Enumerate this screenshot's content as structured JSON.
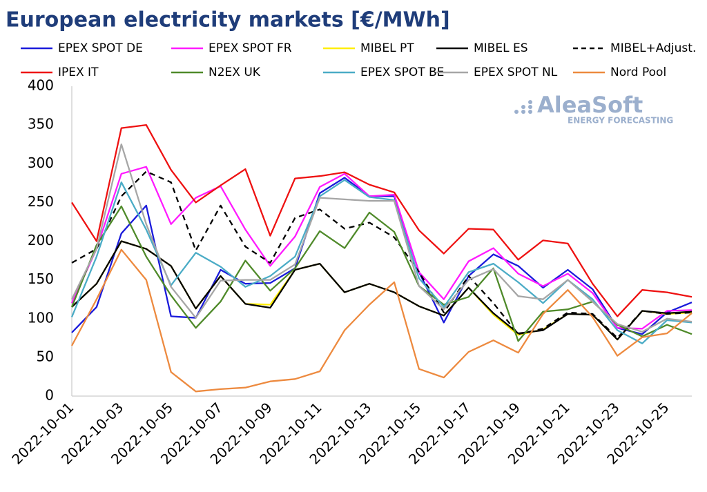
{
  "chart_data": {
    "type": "line",
    "title": "European electricity markets [€/MWh]",
    "watermark": {
      "brand": "AleaSoft",
      "tagline": "ENERGY FORECASTING"
    },
    "categories": [
      "2022-10-01",
      null,
      "2022-10-03",
      null,
      "2022-10-05",
      null,
      "2022-10-07",
      null,
      "2022-10-09",
      null,
      "2022-10-11",
      null,
      "2022-10-13",
      null,
      "2022-10-15",
      null,
      "2022-10-17",
      null,
      "2022-10-19",
      null,
      "2022-10-21",
      null,
      "2022-10-23",
      null,
      "2022-10-25",
      null
    ],
    "ylim": [
      0,
      400
    ],
    "yticks": [
      0,
      50,
      100,
      150,
      200,
      250,
      300,
      350,
      400
    ],
    "grid": false,
    "series": [
      {
        "name": "EPEX SPOT DE",
        "color": "#1a1adb",
        "values": [
          82,
          115,
          210,
          246,
          103,
          101,
          163,
          145,
          146,
          165,
          262,
          282,
          258,
          258,
          160,
          95,
          155,
          183,
          168,
          140,
          163,
          138,
          88,
          80,
          108,
          121
        ]
      },
      {
        "name": "EPEX SPOT FR",
        "color": "#ff1aff",
        "values": [
          120,
          190,
          287,
          296,
          222,
          256,
          271,
          215,
          168,
          206,
          270,
          287,
          258,
          260,
          160,
          125,
          174,
          191,
          158,
          142,
          158,
          133,
          88,
          87,
          110,
          111
        ]
      },
      {
        "name": "MIBEL PT",
        "color": "#ffee00",
        "values": [
          115,
          145,
          200,
          190,
          168,
          113,
          155,
          119,
          118,
          163,
          171,
          134,
          145,
          134,
          116,
          104,
          140,
          105,
          79,
          86,
          106,
          105,
          73,
          110,
          106,
          108
        ]
      },
      {
        "name": "MIBEL ES",
        "color": "#000000",
        "values": [
          115,
          145,
          200,
          190,
          168,
          113,
          155,
          119,
          114,
          163,
          171,
          134,
          145,
          134,
          116,
          104,
          140,
          107,
          81,
          85,
          106,
          105,
          73,
          110,
          107,
          109
        ]
      },
      {
        "name": "MIBEL+Adjust.",
        "color": "#000000",
        "dashed": true,
        "values": [
          172,
          190,
          258,
          290,
          276,
          188,
          246,
          193,
          172,
          230,
          241,
          216,
          224,
          205,
          160,
          108,
          155,
          120,
          80,
          87,
          108,
          106,
          75,
          110,
          106,
          108
        ]
      },
      {
        "name": "IPEX IT",
        "color": "#ee1111",
        "values": [
          250,
          200,
          346,
          350,
          292,
          250,
          272,
          293,
          207,
          281,
          284,
          289,
          273,
          263,
          214,
          184,
          216,
          215,
          176,
          201,
          197,
          145,
          103,
          137,
          134,
          128
        ]
      },
      {
        "name": "N2EX UK",
        "color": "#4f8a2a",
        "values": [
          115,
          195,
          245,
          180,
          130,
          88,
          122,
          175,
          136,
          165,
          213,
          191,
          237,
          212,
          142,
          118,
          128,
          165,
          71,
          109,
          112,
          122,
          92,
          77,
          92,
          80
        ]
      },
      {
        "name": "EPEX SPOT BE",
        "color": "#4bacc6",
        "values": [
          102,
          180,
          276,
          215,
          143,
          185,
          167,
          141,
          155,
          180,
          258,
          279,
          257,
          253,
          152,
          115,
          160,
          171,
          147,
          120,
          150,
          125,
          85,
          68,
          98,
          95
        ]
      },
      {
        "name": "EPEX SPOT NL",
        "color": "#a6a6a6",
        "values": [
          125,
          190,
          325,
          222,
          141,
          101,
          149,
          150,
          150,
          170,
          256,
          254,
          252,
          252,
          142,
          112,
          150,
          164,
          129,
          125,
          150,
          122,
          93,
          83,
          100,
          96
        ]
      },
      {
        "name": "Nord Pool",
        "color": "#ed8a3f",
        "values": [
          65,
          125,
          189,
          150,
          31,
          6,
          9,
          11,
          19,
          22,
          32,
          85,
          118,
          147,
          35,
          24,
          57,
          72,
          56,
          106,
          137,
          102,
          52,
          76,
          81,
          107
        ]
      }
    ]
  }
}
